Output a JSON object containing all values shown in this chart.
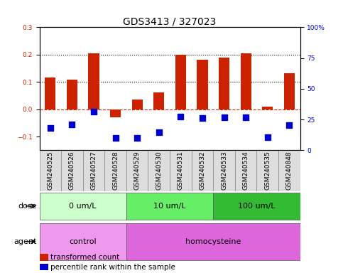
{
  "title": "GDS3413 / 327023",
  "samples": [
    "GSM240525",
    "GSM240526",
    "GSM240527",
    "GSM240528",
    "GSM240529",
    "GSM240530",
    "GSM240531",
    "GSM240532",
    "GSM240533",
    "GSM240534",
    "GSM240535",
    "GSM240848"
  ],
  "red_values": [
    0.115,
    0.108,
    0.205,
    -0.03,
    0.035,
    0.062,
    0.2,
    0.18,
    0.19,
    0.205,
    0.01,
    0.132
  ],
  "blue_values": [
    -0.068,
    -0.055,
    -0.01,
    -0.105,
    -0.105,
    -0.085,
    -0.027,
    -0.032,
    -0.03,
    -0.03,
    -0.103,
    -0.058
  ],
  "red_color": "#cc2200",
  "blue_color": "#0000cc",
  "zero_line_color": "#cc2200",
  "dotted_line_color": "#000000",
  "ylim_left": [
    -0.15,
    0.3
  ],
  "yticks_left": [
    -0.1,
    0.0,
    0.1,
    0.2,
    0.3
  ],
  "yticks_right": [
    0,
    25,
    50,
    75,
    100
  ],
  "ylim_right": [
    0,
    100
  ],
  "dose_groups": [
    {
      "label": "0 um/L",
      "start": 0,
      "end": 4,
      "color": "#ccffcc"
    },
    {
      "label": "10 um/L",
      "start": 4,
      "end": 8,
      "color": "#66ee66"
    },
    {
      "label": "100 um/L",
      "start": 8,
      "end": 12,
      "color": "#33bb33"
    }
  ],
  "agent_groups": [
    {
      "label": "control",
      "start": 0,
      "end": 4,
      "color": "#ee99ee"
    },
    {
      "label": "homocysteine",
      "start": 4,
      "end": 12,
      "color": "#dd66dd"
    }
  ],
  "dose_label": "dose",
  "agent_label": "agent",
  "legend_red": "transformed count",
  "legend_blue": "percentile rank within the sample",
  "bar_width": 0.5,
  "blue_square_size": 30,
  "title_fontsize": 10,
  "tick_fontsize": 6.5,
  "label_fontsize": 8,
  "annotation_fontsize": 7.5
}
